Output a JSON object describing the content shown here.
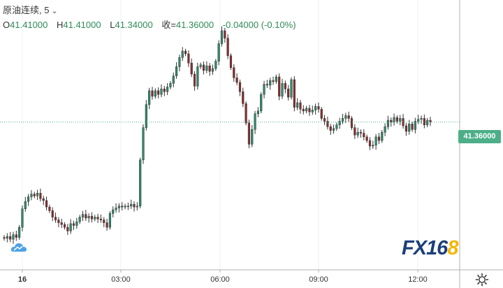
{
  "symbol": {
    "name": "原油连续",
    "interval": ", 5",
    "chevron_icon": "chevron-down-icon"
  },
  "ohlc": {
    "o_label": "O",
    "o_value": "41.41000",
    "h_label": "H",
    "h_value": "41.41000",
    "l_label": "L",
    "l_value": "41.34000",
    "c_label": "收=",
    "c_value": "41.36000",
    "change": "-0.04000 (-0.10%)"
  },
  "price_tag": "41.36000",
  "time_axis": {
    "labels": [
      "16",
      "03:00",
      "06:00",
      "09:00",
      "12:00"
    ]
  },
  "logo": {
    "text_main": "FX16",
    "text_highlight": "8"
  },
  "colors": {
    "up": "#2e8b6e",
    "down": "#8b2c2c",
    "grid": "#eef0f3",
    "axis": "#b0b0b0",
    "last_price": "#4caf88"
  },
  "chart_data": {
    "type": "candlestick",
    "x_unit": "5-minute bars",
    "x_ticks": [
      "16",
      "03:00",
      "06:00",
      "09:00",
      "12:00"
    ],
    "last_price": 41.36,
    "closes": [
      40.1,
      40.12,
      40.09,
      40.14,
      40.11,
      40.22,
      40.42,
      40.5,
      40.55,
      40.58,
      40.56,
      40.59,
      40.53,
      40.51,
      40.44,
      40.4,
      40.33,
      40.3,
      40.27,
      40.25,
      40.22,
      40.18,
      40.26,
      40.24,
      40.28,
      40.33,
      40.36,
      40.32,
      40.34,
      40.31,
      40.33,
      40.31,
      40.3,
      40.27,
      40.22,
      40.37,
      40.41,
      40.43,
      40.45,
      40.44,
      40.45,
      40.45,
      40.47,
      40.44,
      40.45,
      40.95,
      41.3,
      41.55,
      41.7,
      41.64,
      41.7,
      41.66,
      41.72,
      41.69,
      41.74,
      41.78,
      41.86,
      41.96,
      42.06,
      42.13,
      42.1,
      42.0,
      41.88,
      41.75,
      41.96,
      41.98,
      41.92,
      41.97,
      41.91,
      41.94,
      42.02,
      42.21,
      42.35,
      42.27,
      42.08,
      41.95,
      41.84,
      41.79,
      41.69,
      41.56,
      41.35,
      41.12,
      41.28,
      41.45,
      41.48,
      41.66,
      41.77,
      41.76,
      41.81,
      41.8,
      41.85,
      41.64,
      41.78,
      41.72,
      41.63,
      41.82,
      41.52,
      41.57,
      41.5,
      41.48,
      41.51,
      41.47,
      41.49,
      41.53,
      41.5,
      41.4,
      41.37,
      41.31,
      41.27,
      41.29,
      41.33,
      41.37,
      41.4,
      41.43,
      41.4,
      41.3,
      41.22,
      41.25,
      41.24,
      41.2,
      41.16,
      41.1,
      41.11,
      41.2,
      41.16,
      41.25,
      41.31,
      41.38,
      41.36,
      41.41,
      41.37,
      41.4,
      41.32,
      41.26,
      41.34,
      41.28,
      41.37,
      41.39,
      41.4,
      41.33,
      41.38,
      41.36
    ]
  }
}
